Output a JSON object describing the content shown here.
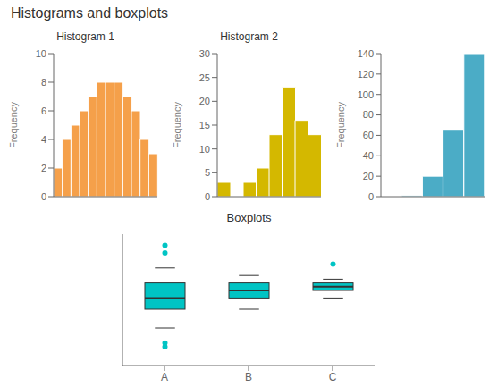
{
  "title": "Histograms and boxplots",
  "chart_data": [
    {
      "type": "bar",
      "title": "Histogram 1",
      "values": [
        2,
        4,
        5,
        6,
        7,
        8,
        8,
        8,
        7,
        6,
        4,
        3
      ],
      "color": "#F5A04A",
      "y_label": "Frequency",
      "ylim": [
        0,
        10
      ],
      "yticks": [
        0,
        2,
        4,
        6,
        8,
        10
      ],
      "tick_labels": "y",
      "grid": false
    },
    {
      "type": "bar",
      "title": "Histogram 2",
      "values": [
        3,
        0,
        3,
        6,
        13,
        23,
        16,
        13
      ],
      "color": "#D4B800",
      "y_label": "Frequency",
      "ylim": [
        0,
        30
      ],
      "yticks": [
        0,
        5,
        10,
        15,
        20,
        25,
        30
      ],
      "tick_labels": "y",
      "grid": false
    },
    {
      "type": "bar",
      "values": [
        0,
        1,
        20,
        65,
        140
      ],
      "color": "#4BACC6",
      "y_label": "Frequency",
      "ylim": [
        0,
        140
      ],
      "yticks": [
        0,
        20,
        40,
        60,
        80,
        100,
        120,
        140
      ],
      "tick_labels": "y",
      "grid": false
    },
    {
      "type": "box",
      "title": "Boxplots",
      "categories": [
        "A",
        "B",
        "C"
      ],
      "boxes": [
        {
          "q1": 65,
          "median": 68,
          "q3": 72,
          "whislo": 60,
          "whishi": 76,
          "outliers": [
            80,
            82,
            55,
            56
          ]
        },
        {
          "q1": 68,
          "median": 70,
          "q3": 72,
          "whislo": 65,
          "whishi": 74,
          "outliers": []
        },
        {
          "q1": 70,
          "median": 71,
          "q3": 72,
          "whislo": 68,
          "whishi": 73,
          "outliers": [
            77
          ]
        }
      ],
      "color": "#00C4C4",
      "ylim": [
        50,
        85
      ],
      "tick_labels": "x",
      "grid": false
    }
  ]
}
